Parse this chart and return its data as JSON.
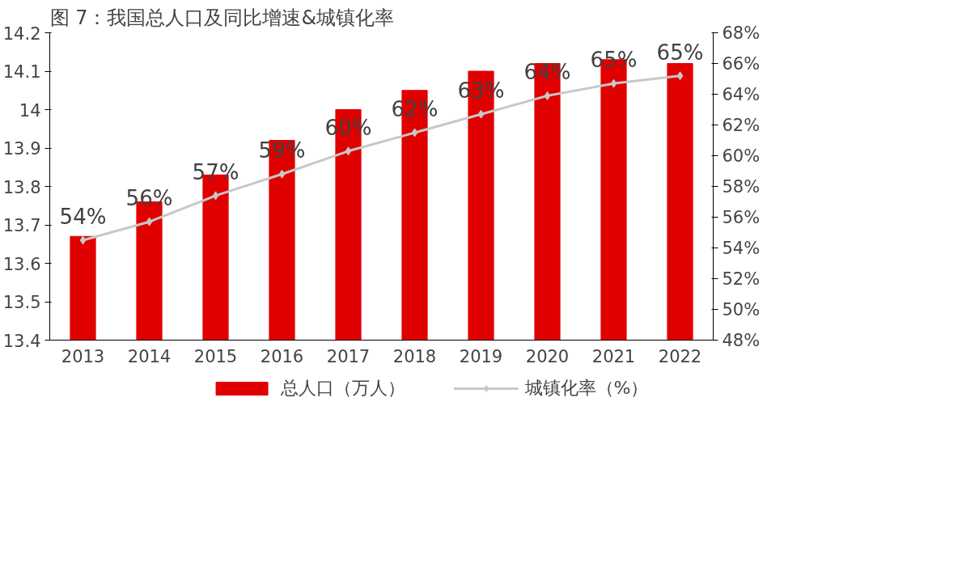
{
  "chart_data": {
    "type": "bar",
    "title": "图 7：我国总人口及同比增速&城镇化率",
    "categories": [
      "2013",
      "2014",
      "2015",
      "2016",
      "2017",
      "2018",
      "2019",
      "2020",
      "2021",
      "2022"
    ],
    "series": [
      {
        "name": "总人口（万人）",
        "color": "#e00000",
        "values": [
          13.67,
          13.76,
          13.83,
          13.92,
          14.0,
          14.05,
          14.1,
          14.12,
          14.13,
          14.12
        ]
      },
      {
        "name": "城镇化率（%）",
        "type": "line",
        "axis": "y2",
        "color": "#c8c8c8",
        "marker": "diamond",
        "values": [
          54.5,
          55.7,
          57.4,
          58.8,
          60.3,
          61.5,
          62.7,
          63.9,
          64.7,
          65.2
        ],
        "value_labels": [
          "54%",
          "56%",
          "57%",
          "59%",
          "60%",
          "62%",
          "63%",
          "64%",
          "65%",
          "65%"
        ]
      }
    ],
    "ylim": [
      13.4,
      14.2
    ],
    "yticks": [
      13.4,
      13.5,
      13.6,
      13.7,
      13.8,
      13.9,
      {
        "value": 14.0,
        "label": "14"
      },
      14.1,
      14.2
    ],
    "y2lim": [
      48,
      68
    ],
    "y2ticks": [
      {
        "value": 48,
        "label": "48%"
      },
      {
        "value": 50,
        "label": "50%"
      },
      {
        "value": 52,
        "label": "52%"
      },
      {
        "value": 54,
        "label": "54%"
      },
      {
        "value": 56,
        "label": "56%"
      },
      {
        "value": 58,
        "label": "58%"
      },
      {
        "value": 60,
        "label": "60%"
      },
      {
        "value": 62,
        "label": "62%"
      },
      {
        "value": 64,
        "label": "64%"
      },
      {
        "value": 66,
        "label": "66%"
      },
      {
        "value": 68,
        "label": "68%"
      }
    ],
    "grid": false,
    "legend": "bottom"
  }
}
